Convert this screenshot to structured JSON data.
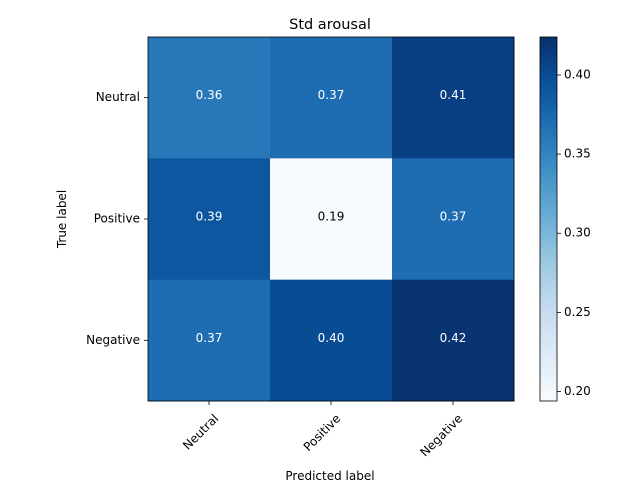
{
  "chart_data": {
    "type": "heatmap",
    "title": "Std arousal",
    "xlabel": "Predicted label",
    "ylabel": "True label",
    "x_categories": [
      "Neutral",
      "Positive",
      "Negative"
    ],
    "y_categories": [
      "Neutral",
      "Positive",
      "Negative"
    ],
    "values": [
      [
        0.36,
        0.37,
        0.41
      ],
      [
        0.39,
        0.19,
        0.37
      ],
      [
        0.37,
        0.4,
        0.42
      ]
    ],
    "cell_labels": [
      [
        "0.36",
        "0.37",
        "0.41"
      ],
      [
        "0.39",
        "0.19",
        "0.37"
      ],
      [
        "0.37",
        "0.40",
        "0.42"
      ]
    ],
    "colorbar": {
      "range": [
        0.194,
        0.424
      ],
      "ticks": [
        0.2,
        0.25,
        0.3,
        0.35,
        0.4
      ],
      "tick_labels": [
        "0.20",
        "0.25",
        "0.30",
        "0.35",
        "0.40"
      ]
    },
    "colormap": "Blues",
    "x_tick_rotation": 45,
    "grid": false
  },
  "colors": {
    "axis": "#000000",
    "text_light": "#ffffff",
    "text_dark": "#000000"
  }
}
